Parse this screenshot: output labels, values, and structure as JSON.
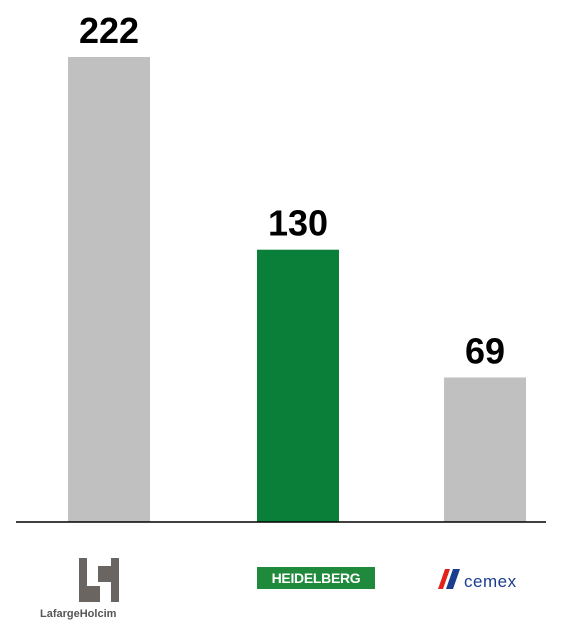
{
  "chart_data": {
    "type": "bar",
    "categories": [
      "LafargeHolcim",
      "HEIDELBERG",
      "CEMEX"
    ],
    "values": [
      222,
      130,
      69
    ],
    "data_labels": [
      "222",
      "130",
      "69"
    ],
    "bar_colors": [
      "#c0c0c0",
      "#0a7f3a",
      "#c0c0c0"
    ],
    "title": "",
    "xlabel": "",
    "ylabel": "",
    "ylim": [
      0,
      222
    ],
    "grid": false,
    "legend": "none"
  },
  "logos": {
    "lafargeholcim": {
      "text": "LafargeHolcim",
      "icon": "lafargeholcim-logo-icon",
      "color": "#6b6562"
    },
    "heidelberg": {
      "text": "HEIDELBERG",
      "color": "#1f8a3c"
    },
    "cemex": {
      "text": "CEMEX",
      "display_text": "cemex",
      "icon": "cemex-stripes-icon",
      "colors": [
        "#e2231a",
        "#1b3d8f"
      ]
    }
  }
}
